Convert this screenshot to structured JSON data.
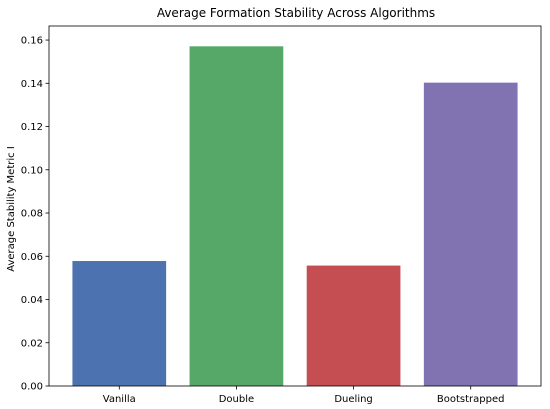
{
  "chart_data": {
    "type": "bar",
    "title": "Average Formation Stability Across Algorithms",
    "xlabel": "",
    "ylabel": "Average Stability Metric I",
    "categories": [
      "Vanilla",
      "Double",
      "Dueling",
      "Bootstrapped"
    ],
    "values": [
      0.0578,
      0.1571,
      0.0557,
      0.1403
    ],
    "colors": [
      "#4c72b0",
      "#55a868",
      "#c44e52",
      "#8172b2"
    ],
    "ylim": [
      0,
      0.1665
    ],
    "yticks": [
      0.0,
      0.02,
      0.04,
      0.06,
      0.08,
      0.1,
      0.12,
      0.14,
      0.16
    ],
    "ytick_labels": [
      "0.00",
      "0.02",
      "0.04",
      "0.06",
      "0.08",
      "0.10",
      "0.12",
      "0.14",
      "0.16"
    ],
    "grid": false,
    "legend": "none"
  }
}
